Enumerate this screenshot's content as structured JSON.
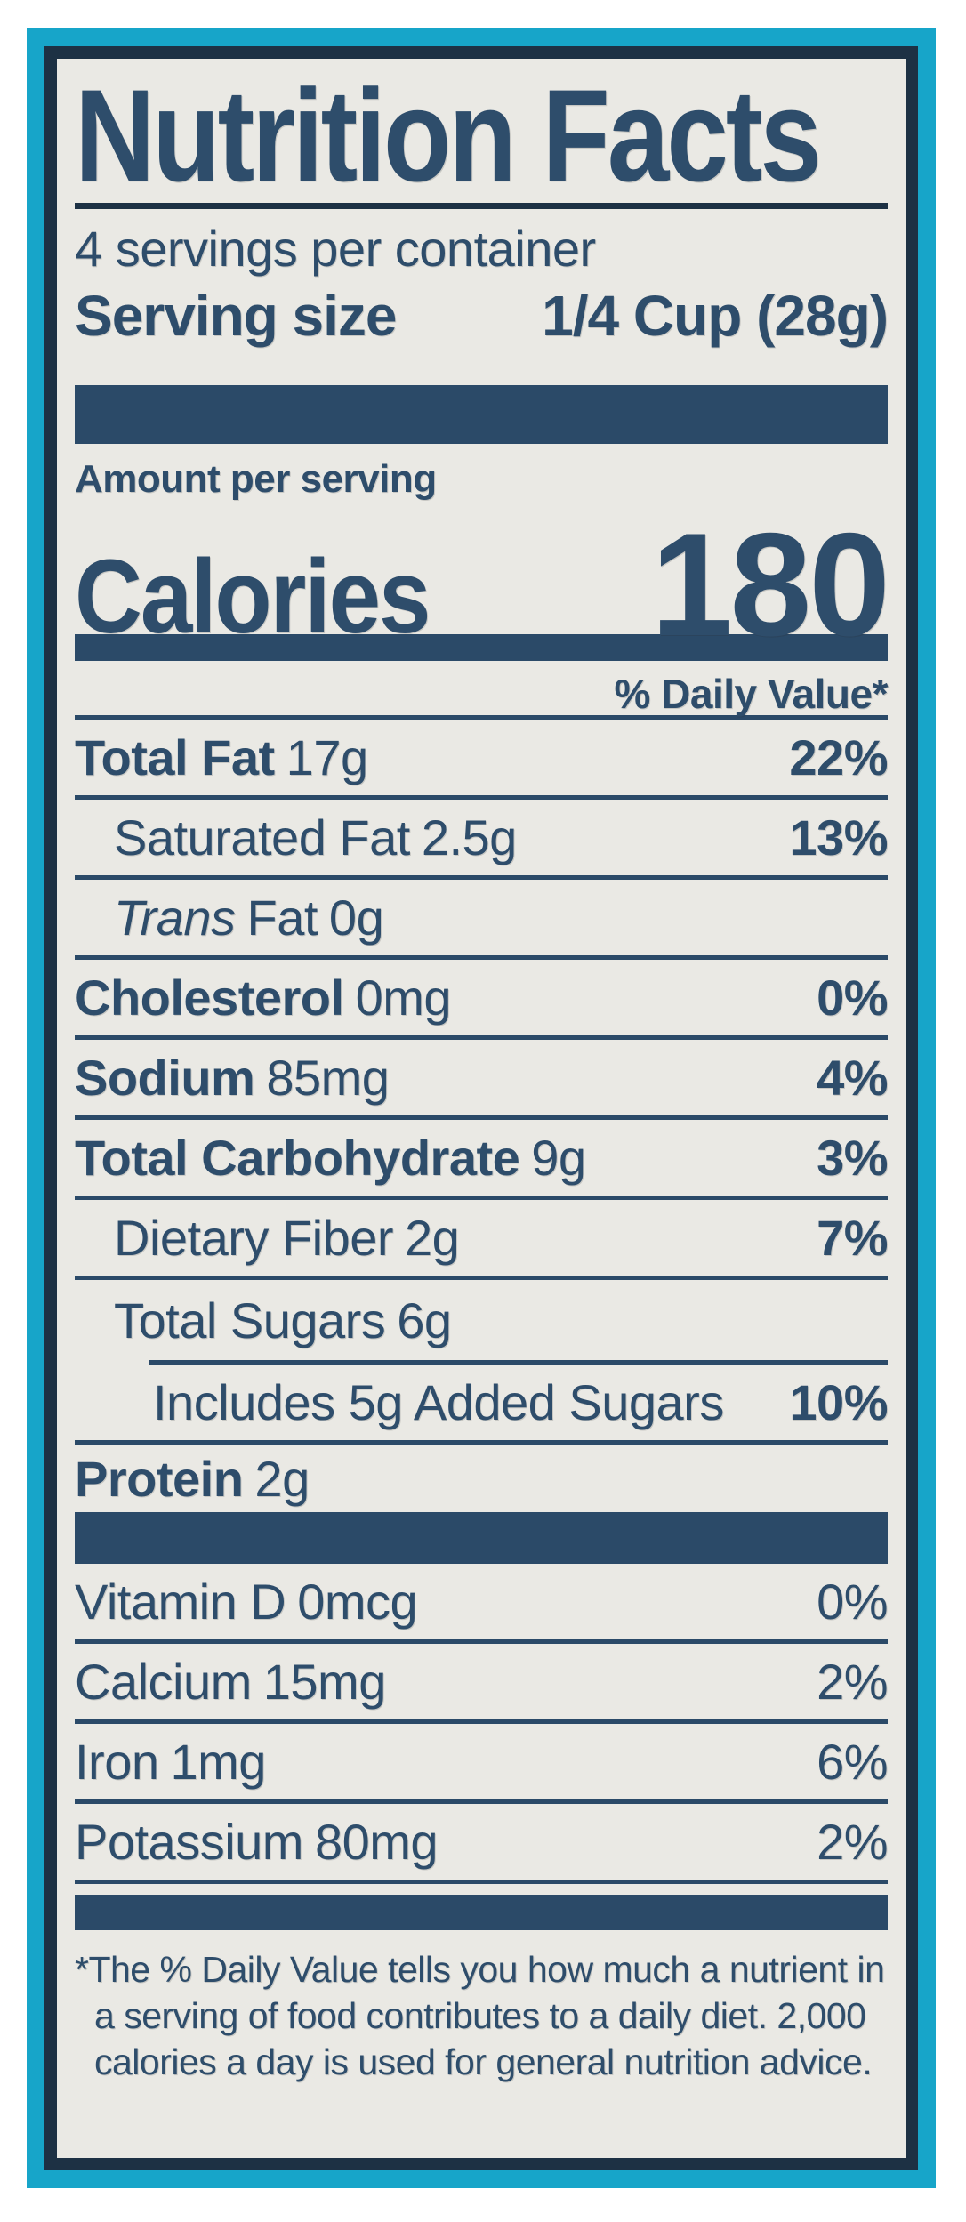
{
  "colors": {
    "page_bg": "#ffffff",
    "teal_border": "#17a5c9",
    "frame_navy": "#1d3144",
    "label_bg": "#eae9e4",
    "ink_navy": "#2e4d6b",
    "bar_navy": "#2b4a68"
  },
  "label": {
    "title": "Nutrition Facts",
    "servings_per_container": "4 servings per container",
    "serving_size": {
      "label": "Serving size",
      "value": "1/4 Cup (28g)"
    },
    "amount_per_serving": "Amount per serving",
    "calories": {
      "label": "Calories",
      "value": "180"
    },
    "daily_value_header": "% Daily Value*",
    "rows": [
      {
        "name": "Total Fat",
        "amount": "17g",
        "dv": "22%"
      },
      {
        "name": "Saturated Fat",
        "amount": "2.5g",
        "dv": "13%"
      },
      {
        "name_italic": "Trans",
        "name": "Fat",
        "amount": "0g",
        "dv": ""
      },
      {
        "name": "Cholesterol",
        "amount": "0mg",
        "dv": "0%"
      },
      {
        "name": "Sodium",
        "amount": "85mg",
        "dv": "4%"
      },
      {
        "name": "Total Carbohydrate",
        "amount": "9g",
        "dv": "3%"
      },
      {
        "name": "Dietary Fiber",
        "amount": "2g",
        "dv": "7%"
      },
      {
        "name": "Total Sugars",
        "amount": "6g",
        "dv": ""
      },
      {
        "name": "Includes 5g Added Sugars",
        "amount": "",
        "dv": "10%"
      },
      {
        "name": "Protein",
        "amount": "2g",
        "dv": ""
      }
    ],
    "vitamins": [
      {
        "name": "Vitamin D",
        "amount": "0mcg",
        "dv": "0%"
      },
      {
        "name": "Calcium",
        "amount": "15mg",
        "dv": "2%"
      },
      {
        "name": "Iron",
        "amount": "1mg",
        "dv": "6%"
      },
      {
        "name": "Potassium",
        "amount": "80mg",
        "dv": "2%"
      }
    ],
    "footnote_lines": [
      "*The % Daily Value tells you how much a nutrient in",
      "a serving of food contributes to a daily diet. 2,000",
      "calories a day is used for general nutrition advice."
    ]
  }
}
